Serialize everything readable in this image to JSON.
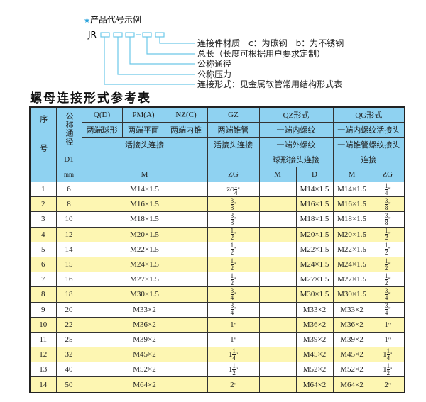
{
  "diagram": {
    "heading": "产品代号示例",
    "code_prefix": "JR",
    "star_color": "#2aa3dc",
    "line_color": "#6cc8e8",
    "labels": [
      "连接件材质　c：为碳钢　b：为不锈钢",
      "总长（长度可根据用户要求定制）",
      "公称通径",
      "公称压力",
      "连接形式：见金属软管常用结构形式表"
    ]
  },
  "title": "螺母连接形式参考表",
  "header": {
    "seq": "序号",
    "dia": "公称通径",
    "row1": [
      "Q(D)",
      "PM(A)",
      "NZ(C)",
      "GZ",
      "QZ形式",
      "QG形式"
    ],
    "row2": [
      "两端球形",
      "两端平面",
      "两端内锥",
      "两端锥管",
      "一端内螺纹",
      "一端内螺纹活接头"
    ],
    "row3": [
      "活接头连接",
      "活接头连接",
      "一端外螺纹",
      "一端锥管螺纹接头"
    ],
    "row4": [
      "D1",
      "",
      "",
      "球形接头连接",
      "连接"
    ],
    "row5": [
      "mm",
      "M",
      "ZG",
      "M",
      "D",
      "M",
      "ZG"
    ]
  },
  "rows": [
    {
      "no": "1",
      "d": "6",
      "m": "M14×1.5",
      "zg": {
        "prefix": "ZG",
        "whole": "",
        "num": "1",
        "den": "4"
      },
      "qz_m": "",
      "qz_d": "M14×1.5",
      "qg_m": "M14×1.5",
      "qg_zg": {
        "whole": "",
        "num": "1",
        "den": "4"
      }
    },
    {
      "no": "2",
      "d": "8",
      "m": "M16×1.5",
      "zg": {
        "whole": "",
        "num": "3",
        "den": "8"
      },
      "qz_m": "",
      "qz_d": "M16×1.5",
      "qg_m": "M16×1.5",
      "qg_zg": {
        "whole": "",
        "num": "3",
        "den": "8"
      }
    },
    {
      "no": "3",
      "d": "10",
      "m": "M18×1.5",
      "zg": {
        "whole": "",
        "num": "3",
        "den": "8"
      },
      "qz_m": "",
      "qz_d": "M18×1.5",
      "qg_m": "M18×1.5",
      "qg_zg": {
        "whole": "",
        "num": "3",
        "den": "8"
      }
    },
    {
      "no": "4",
      "d": "12",
      "m": "M20×1.5",
      "zg": {
        "whole": "",
        "num": "1",
        "den": "2"
      },
      "qz_m": "",
      "qz_d": "M20×1.5",
      "qg_m": "M20×1.5",
      "qg_zg": {
        "whole": "",
        "num": "1",
        "den": "2"
      }
    },
    {
      "no": "5",
      "d": "14",
      "m": "M22×1.5",
      "zg": {
        "whole": "",
        "num": "1",
        "den": "2"
      },
      "qz_m": "",
      "qz_d": "M22×1.5",
      "qg_m": "M22×1.5",
      "qg_zg": {
        "whole": "",
        "num": "1",
        "den": "2"
      }
    },
    {
      "no": "6",
      "d": "15",
      "m": "M24×1.5",
      "zg": {
        "whole": "",
        "num": "1",
        "den": "2"
      },
      "qz_m": "",
      "qz_d": "M24×1.5",
      "qg_m": "M24×1.5",
      "qg_zg": {
        "whole": "",
        "num": "1",
        "den": "2"
      }
    },
    {
      "no": "7",
      "d": "16",
      "m": "M27×1.5",
      "zg": {
        "whole": "",
        "num": "1",
        "den": "2"
      },
      "qz_m": "",
      "qz_d": "M27×1.5",
      "qg_m": "M27×1.5",
      "qg_zg": {
        "whole": "",
        "num": "1",
        "den": "2"
      }
    },
    {
      "no": "8",
      "d": "18",
      "m": "M30×1.5",
      "zg": {
        "whole": "",
        "num": "3",
        "den": "4"
      },
      "qz_m": "",
      "qz_d": "M30×1.5",
      "qg_m": "M30×1.5",
      "qg_zg": {
        "whole": "",
        "num": "3",
        "den": "4"
      }
    },
    {
      "no": "9",
      "d": "20",
      "m": "M33×2",
      "zg": {
        "whole": "",
        "num": "3",
        "den": "4"
      },
      "qz_m": "",
      "qz_d": "M33×2",
      "qg_m": "M33×2",
      "qg_zg": {
        "whole": "",
        "num": "3",
        "den": "4"
      }
    },
    {
      "no": "10",
      "d": "22",
      "m": "M36×2",
      "zg": {
        "whole": "1",
        "num": "",
        "den": ""
      },
      "qz_m": "",
      "qz_d": "M36×2",
      "qg_m": "M36×2",
      "qg_zg": {
        "whole": "1",
        "num": "",
        "den": ""
      }
    },
    {
      "no": "11",
      "d": "25",
      "m": "M39×2",
      "zg": {
        "whole": "1",
        "num": "",
        "den": ""
      },
      "qz_m": "",
      "qz_d": "M39×2",
      "qg_m": "M39×2",
      "qg_zg": {
        "whole": "1",
        "num": "",
        "den": ""
      }
    },
    {
      "no": "12",
      "d": "32",
      "m": "M45×2",
      "zg": {
        "whole": "1",
        "num": "1",
        "den": "4"
      },
      "qz_m": "",
      "qz_d": "M45×2",
      "qg_m": "M45×2",
      "qg_zg": {
        "whole": "1",
        "num": "1",
        "den": "4"
      }
    },
    {
      "no": "13",
      "d": "40",
      "m": "M52×2",
      "zg": {
        "whole": "1",
        "num": "1",
        "den": "2"
      },
      "qz_m": "",
      "qz_d": "M52×2",
      "qg_m": "M52×2",
      "qg_zg": {
        "whole": "1",
        "num": "1",
        "den": "2"
      }
    },
    {
      "no": "14",
      "d": "50",
      "m": "M64×2",
      "zg": {
        "whole": "2",
        "num": "",
        "den": ""
      },
      "qz_m": "",
      "qz_d": "M64×2",
      "qg_m": "M64×2",
      "qg_zg": {
        "whole": "2",
        "num": "",
        "den": ""
      }
    }
  ],
  "inch_mark": "\"",
  "colors": {
    "header": "#8fd2f1",
    "stripe": "#fdf6b2"
  }
}
